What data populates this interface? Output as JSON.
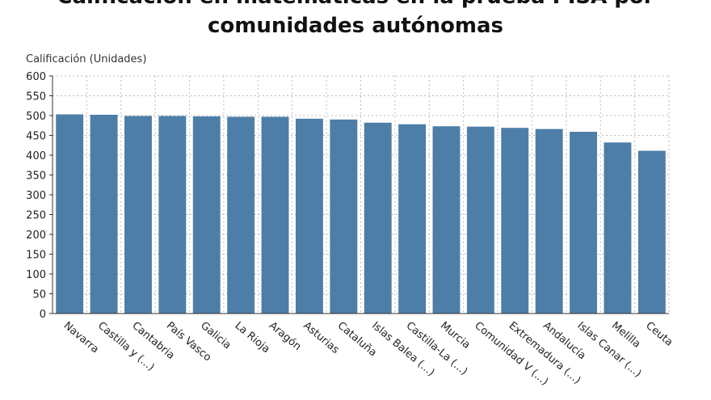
{
  "chart_data": {
    "type": "bar",
    "title_line1": "Calificación en matemáticas en la prueba PISA por",
    "title_line2": "comunidades autónomas",
    "ylabel": "Calificación (Unidades)",
    "xlabel": "",
    "ylim": [
      0,
      600
    ],
    "yticks": [
      0,
      50,
      100,
      150,
      200,
      250,
      300,
      350,
      400,
      450,
      500,
      550,
      600
    ],
    "grid": true,
    "bar_color": "#4d7ea8",
    "categories": [
      "Navarra",
      "Castilla y (...)",
      "Cantabria",
      "País Vasco",
      "Galicia",
      "La Rioja",
      "Aragón",
      "Asturias",
      "Cataluña",
      "Islas Balea (...)",
      "Castilla-La (...)",
      "Murcia",
      "Comunidad V (...)",
      "Extremadura (...)",
      "Andalucía",
      "Islas Canar (...)",
      "Melilla",
      "Ceuta"
    ],
    "values": [
      503,
      502,
      499,
      499,
      498,
      497,
      497,
      492,
      490,
      482,
      478,
      473,
      472,
      469,
      466,
      459,
      432,
      411
    ]
  }
}
